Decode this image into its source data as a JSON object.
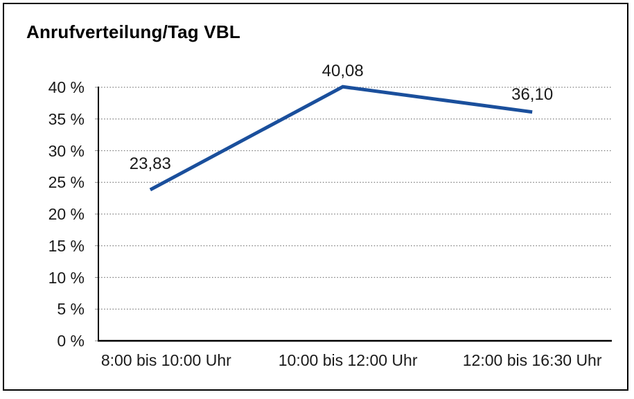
{
  "chart_data": {
    "type": "line",
    "title": "Anrufverteilung/Tag VBL",
    "categories": [
      "8:00 bis 10:00 Uhr",
      "10:00 bis 12:00 Uhr",
      "12:00 bis 16:30 Uhr"
    ],
    "series": [
      {
        "name": "Anrufverteilung",
        "values": [
          23.83,
          40.08,
          36.1
        ]
      }
    ],
    "data_labels": [
      "23,83",
      "40,08",
      "36,10"
    ],
    "xlabel": "",
    "ylabel": "",
    "ylim": [
      0,
      40
    ],
    "ytick_step": 5,
    "ytick_labels": [
      "0 %",
      "5 %",
      "10 %",
      "15 %",
      "20 %",
      "25 %",
      "30 %",
      "35 %",
      "40 %"
    ],
    "grid": "horizontal-dotted",
    "legend": "none",
    "colors": {
      "line": "#1A4F9C",
      "text": "#1A1A1A",
      "grid": "#7a7a7a",
      "axis": "#000000",
      "background": "#FFFFFF",
      "border": "#000000"
    }
  }
}
